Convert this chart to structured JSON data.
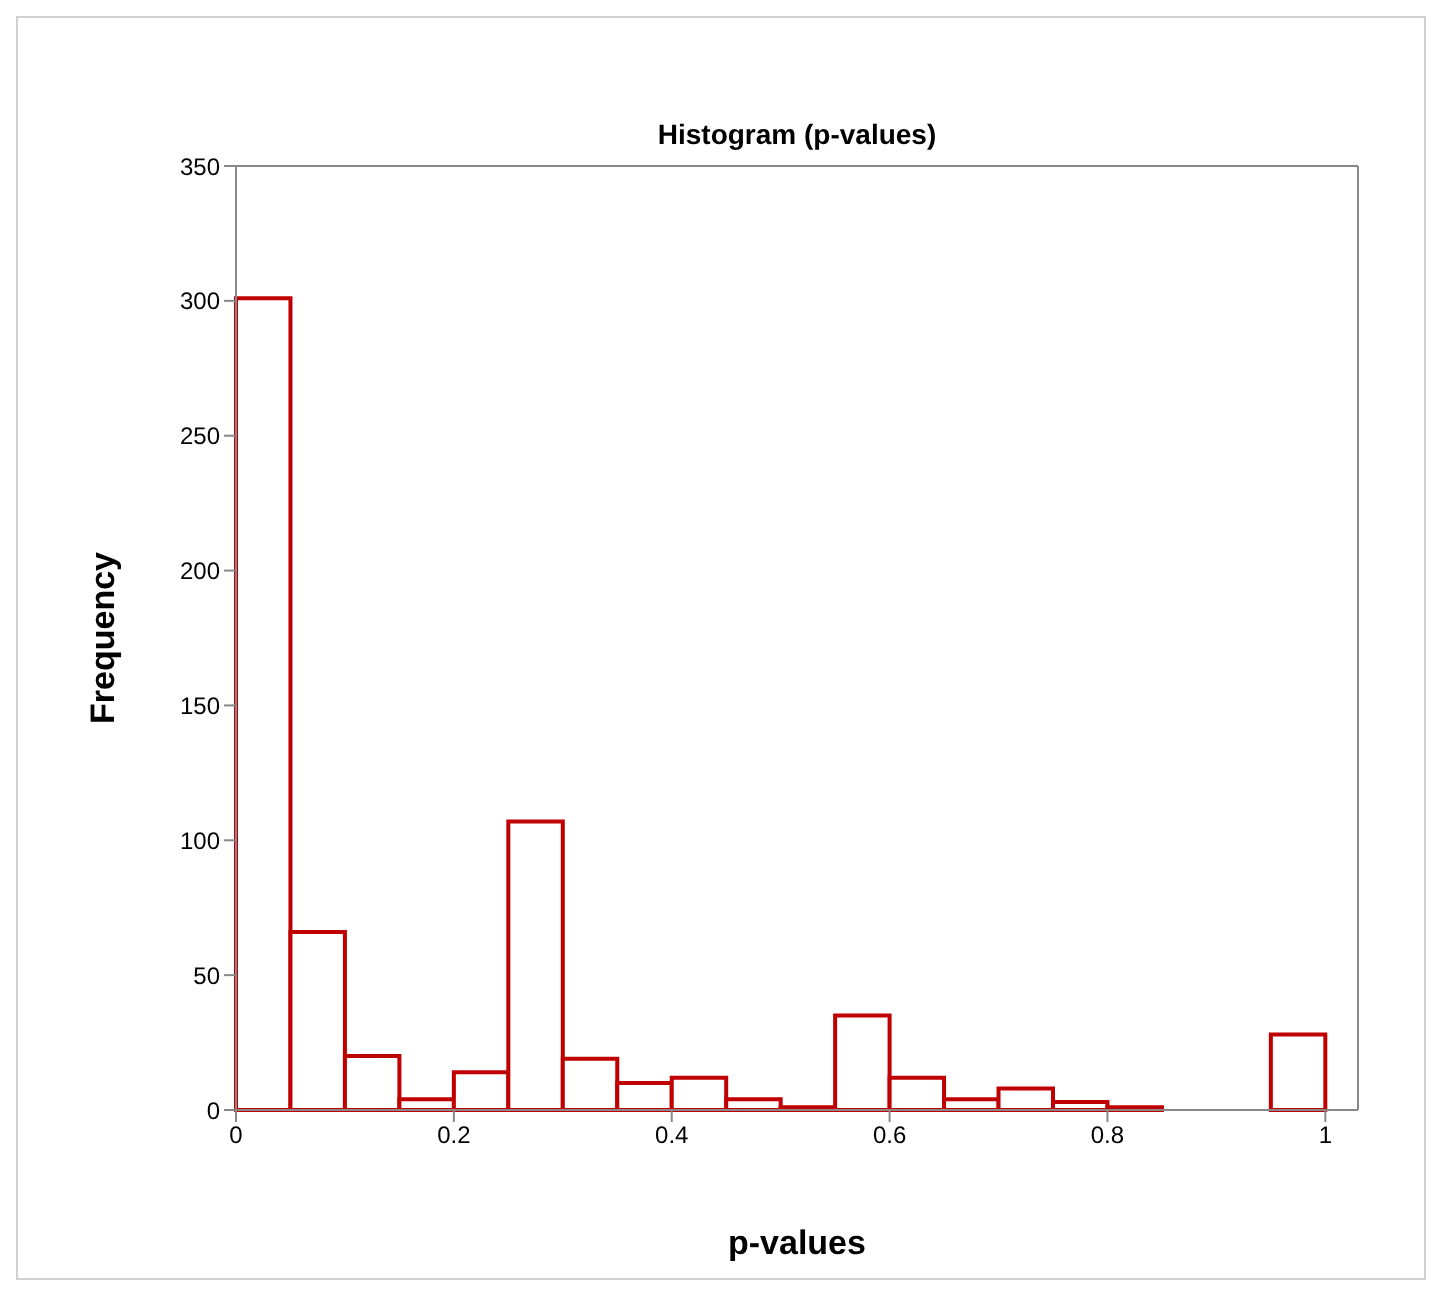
{
  "chart_data": {
    "type": "histogram",
    "title": "Histogram (p-values)",
    "xlabel": "p-values",
    "ylabel": "Frequency",
    "bins": [
      0,
      0.05,
      0.1,
      0.15,
      0.2,
      0.25,
      0.3,
      0.35,
      0.4,
      0.45,
      0.5,
      0.55,
      0.6,
      0.65,
      0.7,
      0.75,
      0.8,
      0.85,
      0.9,
      0.95,
      1
    ],
    "values": [
      301,
      66,
      20,
      4,
      14,
      107,
      19,
      10,
      12,
      4,
      1,
      35,
      12,
      4,
      8,
      3,
      1,
      0,
      0,
      28
    ],
    "color": "#c00000",
    "xlim": [
      0,
      1.03
    ],
    "xticks": [
      0,
      0.2,
      0.4,
      0.6,
      0.8,
      1
    ],
    "ylim": [
      0,
      350
    ],
    "yticks": [
      0,
      50,
      100,
      150,
      200,
      250,
      300,
      350
    ],
    "grid": false
  }
}
